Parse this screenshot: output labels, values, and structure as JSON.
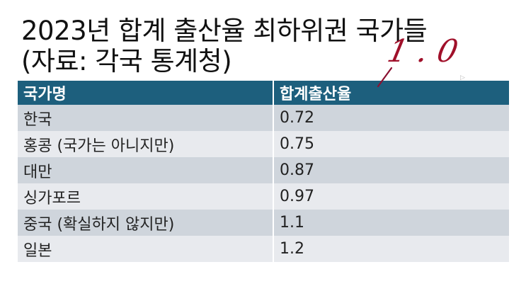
{
  "slide": {
    "title": "2023년 합계 출산율 최하위권 국가들\n(자료: 각국 통계청)",
    "table": {
      "headers": [
        "국가명",
        "합계출산율"
      ],
      "rows": [
        [
          "한국",
          "0.72"
        ],
        [
          "홍콩 (국가는 아니지만)",
          "0.75"
        ],
        [
          "대만",
          "0.87"
        ],
        [
          "싱가포르",
          "0.97"
        ],
        [
          "중국 (확실하지 않지만)",
          "1.1"
        ],
        [
          "일본",
          "1.2"
        ]
      ]
    },
    "annotation": "1.0",
    "colors": {
      "header": "#1d5f7d",
      "row_dark": "#cfd5dc",
      "row_light": "#e8eaee",
      "ink": "#a0102a"
    }
  }
}
